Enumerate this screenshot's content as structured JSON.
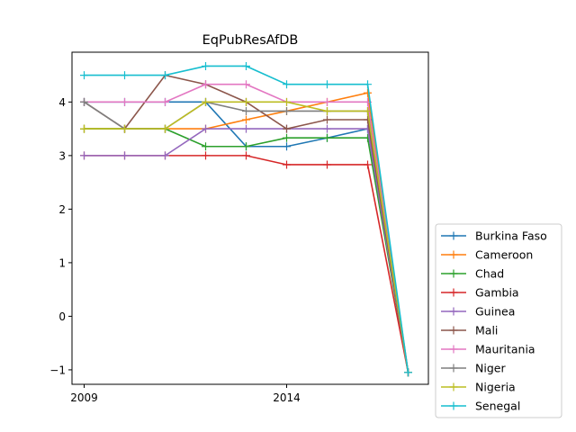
{
  "chart_data": {
    "type": "line",
    "title": "EqPubResAfDB",
    "xlabel": "",
    "ylabel": "",
    "x": [
      2009,
      2010,
      2011,
      2012,
      2013,
      2014,
      2015,
      2016,
      2017
    ],
    "xticks": [
      2009,
      2014
    ],
    "xlim": [
      2008.7,
      2017.5
    ],
    "ylim": [
      -1.27,
      4.93
    ],
    "yticks": [
      -1,
      0,
      1,
      2,
      3,
      4
    ],
    "ytick_labels": [
      "−1",
      "0",
      "1",
      "2",
      "3",
      "4"
    ],
    "grid": false,
    "legend_position": "outside-bottom-right",
    "series": [
      {
        "name": "Burkina Faso",
        "color": "#1f77b4",
        "values": [
          4.0,
          4.0,
          4.0,
          4.0,
          3.17,
          3.17,
          3.33,
          3.5,
          -1.05
        ]
      },
      {
        "name": "Cameroon",
        "color": "#ff7f0e",
        "values": [
          3.5,
          3.5,
          3.5,
          3.5,
          3.67,
          3.83,
          4.0,
          4.17,
          -1.05
        ]
      },
      {
        "name": "Chad",
        "color": "#2ca02c",
        "values": [
          3.5,
          3.5,
          3.5,
          3.17,
          3.17,
          3.33,
          3.33,
          3.33,
          -1.05
        ]
      },
      {
        "name": "Gambia",
        "color": "#d62728",
        "values": [
          3.0,
          3.0,
          3.0,
          3.0,
          3.0,
          2.83,
          2.83,
          2.83,
          -1.05
        ]
      },
      {
        "name": "Guinea",
        "color": "#9467bd",
        "values": [
          3.0,
          3.0,
          3.0,
          3.5,
          3.5,
          3.5,
          3.5,
          3.5,
          -1.05
        ]
      },
      {
        "name": "Mali",
        "color": "#8c564b",
        "values": [
          4.0,
          3.5,
          4.5,
          4.33,
          4.0,
          3.5,
          3.67,
          3.67,
          -1.05
        ]
      },
      {
        "name": "Mauritania",
        "color": "#e377c2",
        "values": [
          4.0,
          4.0,
          4.0,
          4.33,
          4.33,
          4.0,
          4.0,
          4.0,
          -1.05
        ]
      },
      {
        "name": "Niger",
        "color": "#7f7f7f",
        "values": [
          4.0,
          3.5,
          3.5,
          4.0,
          3.83,
          3.83,
          3.83,
          3.83,
          -1.05
        ]
      },
      {
        "name": "Nigeria",
        "color": "#bcbd22",
        "values": [
          3.5,
          3.5,
          3.5,
          4.0,
          4.0,
          4.0,
          3.83,
          3.83,
          -1.05
        ]
      },
      {
        "name": "Senegal",
        "color": "#17becf",
        "values": [
          4.5,
          4.5,
          4.5,
          4.67,
          4.67,
          4.33,
          4.33,
          4.33,
          -1.05
        ]
      }
    ]
  }
}
